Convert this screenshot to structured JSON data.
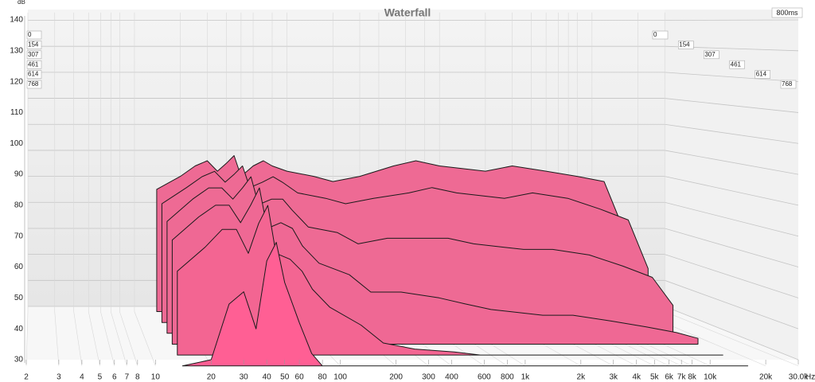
{
  "chart_data": {
    "type": "waterfall",
    "title": "Waterfall",
    "x_unit": "Hz",
    "y_unit": "dB",
    "time_span": "800ms",
    "x": [
      14,
      20,
      25,
      30,
      35,
      40,
      45,
      50,
      60,
      70,
      80,
      100,
      150,
      200,
      300,
      500,
      700,
      1000,
      2000,
      3000,
      5000,
      8000,
      12000,
      16000
    ],
    "series": [
      {
        "name": "0",
        "color": "#ee6a94",
        "values": [
          75,
          80,
          84,
          86,
          82,
          85,
          88,
          80,
          84,
          86,
          84,
          82,
          80,
          78,
          80,
          84,
          86,
          84,
          82,
          84,
          82,
          80,
          78,
          60
        ]
      },
      {
        "name": "154",
        "color": "#ee6a94",
        "values": [
          72,
          78,
          82,
          84,
          80,
          83,
          86,
          78,
          80,
          82,
          80,
          76,
          74,
          72,
          74,
          76,
          78,
          76,
          74,
          76,
          74,
          70,
          66,
          48
        ]
      },
      {
        "name": "307",
        "color": "#ee6a94",
        "values": [
          68,
          76,
          80,
          80,
          76,
          80,
          84,
          74,
          76,
          76,
          72,
          66,
          64,
          60,
          62,
          62,
          62,
          60,
          58,
          58,
          56,
          52,
          48,
          38
        ]
      },
      {
        "name": "461",
        "color": "#ef6894",
        "values": [
          64,
          72,
          76,
          76,
          70,
          76,
          82,
          68,
          70,
          68,
          62,
          56,
          52,
          46,
          46,
          44,
          42,
          40,
          38,
          38,
          36,
          34,
          32,
          30
        ]
      },
      {
        "name": "614",
        "color": "#f36592",
        "values": [
          56,
          64,
          70,
          70,
          62,
          72,
          78,
          62,
          60,
          56,
          50,
          44,
          38,
          32,
          30,
          29,
          28,
          28,
          28,
          28,
          28,
          28,
          28,
          28
        ]
      },
      {
        "name": "768",
        "color": "#ff5f94",
        "values": [
          28,
          30,
          48,
          52,
          40,
          62,
          68,
          55,
          42,
          32,
          28,
          28,
          28,
          28,
          28,
          28,
          28,
          28,
          28,
          28,
          28,
          28,
          28,
          28
        ]
      }
    ],
    "times": [
      0,
      154,
      307,
      461,
      614,
      768
    ],
    "xlim": [
      2,
      30000
    ],
    "log_x": true,
    "xticks": [
      2,
      3,
      4,
      5,
      6,
      7,
      8,
      10,
      20,
      30,
      40,
      50,
      60,
      80,
      100,
      200,
      300,
      400,
      600,
      800,
      {
        "value": 1000,
        "label": "1k"
      },
      {
        "value": 2000,
        "label": "2k"
      },
      {
        "value": 3000,
        "label": "3k"
      },
      {
        "value": 4000,
        "label": "4k"
      },
      {
        "value": 5000,
        "label": "5k"
      },
      {
        "value": 6000,
        "label": "6k"
      },
      {
        "value": 7000,
        "label": "7k"
      },
      {
        "value": 8000,
        "label": "8k"
      },
      {
        "value": 10000,
        "label": "10k"
      },
      {
        "value": 20000,
        "label": "20k"
      },
      {
        "value": 30000,
        "label": "30.0k"
      }
    ],
    "ylim": [
      28,
      143
    ],
    "yticks": [
      30,
      40,
      50,
      60,
      70,
      80,
      90,
      100,
      110,
      120,
      130,
      140
    ],
    "grid": true
  }
}
